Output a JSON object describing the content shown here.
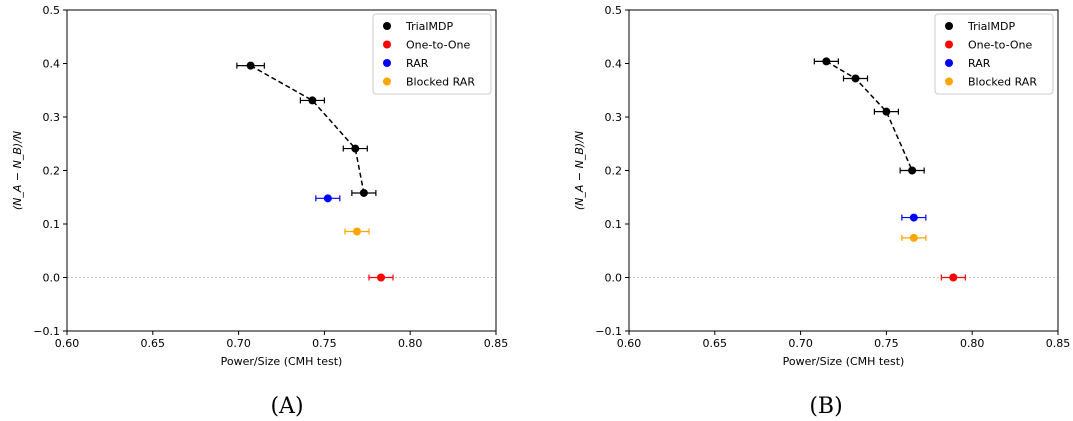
{
  "chart_data": [
    {
      "type": "scatter",
      "caption": "(A)",
      "xlabel": "Power/Size (CMH test)",
      "ylabel": "(N_A − N_B)/N",
      "xlim": [
        0.6,
        0.85
      ],
      "ylim": [
        -0.1,
        0.5
      ],
      "xticks": [
        0.6,
        0.65,
        0.7,
        0.75,
        0.8,
        0.85
      ],
      "xtick_labels": [
        "0.60",
        "0.65",
        "0.70",
        "0.75",
        "0.80",
        "0.85"
      ],
      "yticks": [
        -0.1,
        0.0,
        0.1,
        0.2,
        0.3,
        0.4,
        0.5
      ],
      "ytick_labels": [
        "−0.1",
        "0.0",
        "0.1",
        "0.2",
        "0.3",
        "0.4",
        "0.5"
      ],
      "reference_line_y": 0.0,
      "legend_position": "top-right",
      "series": [
        {
          "name": "TrialMDP",
          "color": "#000000",
          "connected": true,
          "x": [
            0.707,
            0.743,
            0.768,
            0.773
          ],
          "y": [
            0.396,
            0.331,
            0.241,
            0.158
          ],
          "xerr": [
            0.008,
            0.007,
            0.007,
            0.007
          ]
        },
        {
          "name": "One-to-One",
          "color": "#ff0000",
          "connected": false,
          "x": [
            0.783
          ],
          "y": [
            0.0
          ],
          "xerr": [
            0.007
          ]
        },
        {
          "name": "RAR",
          "color": "#0000ff",
          "connected": false,
          "x": [
            0.752
          ],
          "y": [
            0.148
          ],
          "xerr": [
            0.007
          ]
        },
        {
          "name": "Blocked RAR",
          "color": "#ffa500",
          "connected": false,
          "x": [
            0.769
          ],
          "y": [
            0.086
          ],
          "xerr": [
            0.007
          ]
        }
      ]
    },
    {
      "type": "scatter",
      "caption": "(B)",
      "xlabel": "Power/Size (CMH test)",
      "ylabel": "(N_A − N_B)/N",
      "xlim": [
        0.6,
        0.85
      ],
      "ylim": [
        -0.1,
        0.5
      ],
      "xticks": [
        0.6,
        0.65,
        0.7,
        0.75,
        0.8,
        0.85
      ],
      "xtick_labels": [
        "0.60",
        "0.65",
        "0.70",
        "0.75",
        "0.80",
        "0.85"
      ],
      "yticks": [
        -0.1,
        0.0,
        0.1,
        0.2,
        0.3,
        0.4,
        0.5
      ],
      "ytick_labels": [
        "−0.1",
        "0.0",
        "0.1",
        "0.2",
        "0.3",
        "0.4",
        "0.5"
      ],
      "reference_line_y": 0.0,
      "legend_position": "top-right",
      "series": [
        {
          "name": "TrialMDP",
          "color": "#000000",
          "connected": true,
          "x": [
            0.715,
            0.732,
            0.75,
            0.765
          ],
          "y": [
            0.404,
            0.372,
            0.31,
            0.2
          ],
          "xerr": [
            0.007,
            0.007,
            0.007,
            0.007
          ]
        },
        {
          "name": "One-to-One",
          "color": "#ff0000",
          "connected": false,
          "x": [
            0.789
          ],
          "y": [
            0.0
          ],
          "xerr": [
            0.007
          ]
        },
        {
          "name": "RAR",
          "color": "#0000ff",
          "connected": false,
          "x": [
            0.766
          ],
          "y": [
            0.112
          ],
          "xerr": [
            0.007
          ]
        },
        {
          "name": "Blocked RAR",
          "color": "#ffa500",
          "connected": false,
          "x": [
            0.766
          ],
          "y": [
            0.074
          ],
          "xerr": [
            0.007
          ]
        }
      ]
    }
  ]
}
